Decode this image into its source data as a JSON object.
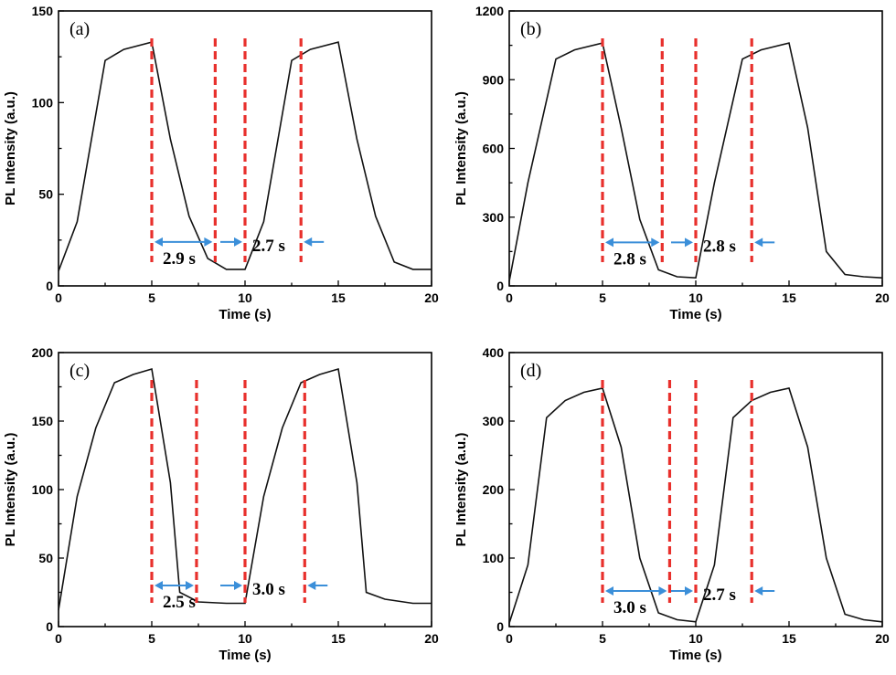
{
  "colors": {
    "curve": "#111111",
    "guide_lines": "#e8302c",
    "arrows": "#3b8fd9"
  },
  "chart_data": [
    {
      "type": "line",
      "panel_label": "(a)",
      "xlabel": "Time (s)",
      "ylabel": "PL Intensity (a.u.)",
      "xlim": [
        0,
        20
      ],
      "ylim": [
        0,
        150
      ],
      "xticks": [
        0,
        5,
        10,
        15,
        20
      ],
      "yticks": [
        0,
        50,
        100,
        150
      ],
      "x": [
        0,
        1,
        2.5,
        3.5,
        5,
        6,
        7,
        8,
        9,
        10,
        11,
        12.5,
        13.5,
        15,
        16,
        17,
        18,
        19,
        20
      ],
      "y": [
        8,
        35,
        123,
        129,
        133,
        80,
        38,
        15,
        9,
        9,
        35,
        123,
        129,
        133,
        80,
        38,
        13,
        9,
        9
      ],
      "guides_x": [
        5,
        8.4,
        10,
        13
      ],
      "decay_label": "2.9 s",
      "rise_label": "2.7 s",
      "arrow_y": 24
    },
    {
      "type": "line",
      "panel_label": "(b)",
      "xlabel": "Time (s)",
      "ylabel": "PL Intensity (a.u.)",
      "xlim": [
        0,
        20
      ],
      "ylim": [
        0,
        1200
      ],
      "xticks": [
        0,
        5,
        10,
        15,
        20
      ],
      "yticks": [
        0,
        300,
        600,
        900,
        1200
      ],
      "x": [
        0,
        1,
        2.5,
        3.5,
        5,
        6,
        7,
        8,
        9,
        10,
        11,
        12.5,
        13.5,
        15,
        16,
        17,
        18,
        19,
        20
      ],
      "y": [
        20,
        450,
        990,
        1030,
        1060,
        690,
        290,
        70,
        40,
        35,
        450,
        990,
        1030,
        1060,
        690,
        150,
        50,
        40,
        35
      ],
      "guides_x": [
        5,
        8.2,
        10,
        13
      ],
      "decay_label": "2.8 s",
      "rise_label": "2.8 s",
      "arrow_y": 190
    },
    {
      "type": "line",
      "panel_label": "(c)",
      "xlabel": "Time (s)",
      "ylabel": "PL Intensity (a.u.)",
      "xlim": [
        0,
        20
      ],
      "ylim": [
        0,
        200
      ],
      "xticks": [
        0,
        5,
        10,
        15,
        20
      ],
      "yticks": [
        0,
        50,
        100,
        150,
        200
      ],
      "x": [
        0,
        1,
        2,
        3,
        4,
        5,
        6,
        6.5,
        7.5,
        9,
        10,
        11,
        12,
        13,
        14,
        15,
        16,
        16.5,
        17.5,
        19,
        20
      ],
      "y": [
        12,
        95,
        145,
        178,
        184,
        188,
        105,
        25,
        18,
        17,
        17,
        95,
        145,
        178,
        184,
        188,
        105,
        25,
        20,
        17,
        17
      ],
      "guides_x": [
        5,
        7.4,
        10,
        13.2
      ],
      "decay_label": "2.5 s",
      "rise_label": "3.0 s",
      "arrow_y": 30
    },
    {
      "type": "line",
      "panel_label": "(d)",
      "xlabel": "Time (s)",
      "ylabel": "PL Intensity (a.u.)",
      "xlim": [
        0,
        20
      ],
      "ylim": [
        0,
        400
      ],
      "xticks": [
        0,
        5,
        10,
        15,
        20
      ],
      "yticks": [
        0,
        100,
        200,
        300,
        400
      ],
      "x": [
        0,
        1,
        2,
        3,
        4,
        5,
        6,
        7,
        8,
        9,
        10,
        11,
        12,
        13,
        14,
        15,
        16,
        17,
        18,
        19,
        20
      ],
      "y": [
        5,
        90,
        305,
        330,
        342,
        348,
        262,
        100,
        20,
        10,
        7,
        90,
        305,
        330,
        342,
        348,
        262,
        100,
        18,
        10,
        7
      ],
      "guides_x": [
        5,
        8.6,
        10,
        13
      ],
      "decay_label": "3.0 s",
      "rise_label": "2.7 s",
      "arrow_y": 52
    }
  ]
}
